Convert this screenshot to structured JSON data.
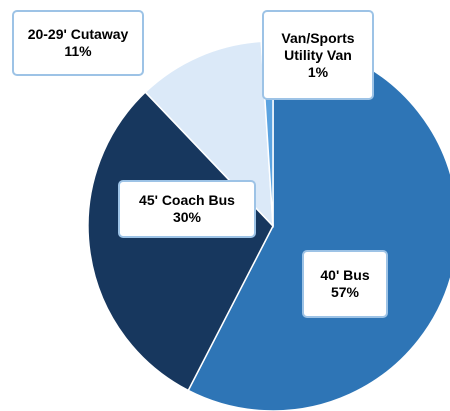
{
  "chart_data": {
    "type": "pie",
    "categories": [
      "40' Bus",
      "45' Coach Bus",
      "20-29' Cutaway",
      "Van/Sports Utility Van"
    ],
    "values": [
      57,
      30,
      11,
      1
    ],
    "value_labels": [
      "57%",
      "30%",
      "11%",
      "1%"
    ],
    "colors": [
      "#2e75b6",
      "#17375e",
      "#dbe9f8",
      "#5ba3e0"
    ]
  }
}
